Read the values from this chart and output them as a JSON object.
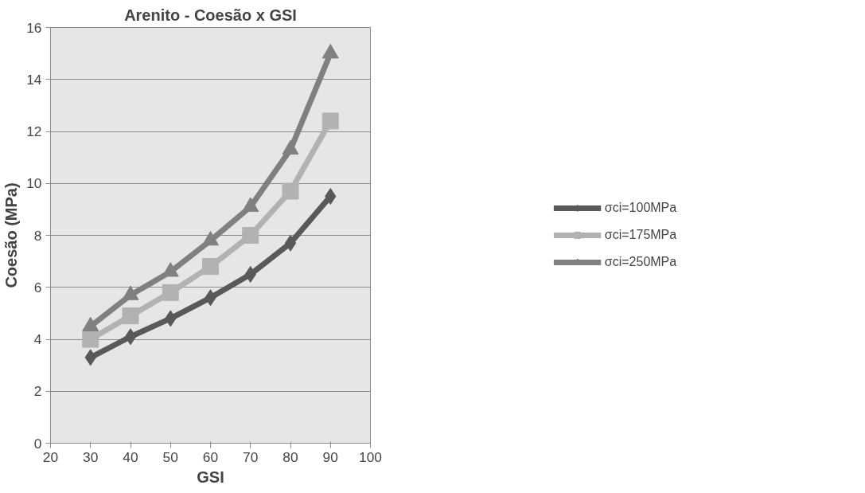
{
  "chart_data": {
    "type": "line",
    "title": "Arenito - Coesão x GSI",
    "xlabel": "GSI",
    "ylabel": "Coesão (MPa)",
    "x": [
      30,
      40,
      50,
      60,
      70,
      80,
      90
    ],
    "series": [
      {
        "name": "σci=100MPa",
        "color": "#595959",
        "marker": "diamond",
        "values": [
          3.3,
          4.1,
          4.8,
          5.6,
          6.5,
          7.7,
          9.5
        ]
      },
      {
        "name": "σci=175MPa",
        "color": "#b2b2b2",
        "marker": "square",
        "values": [
          4.0,
          4.9,
          5.8,
          6.8,
          8.0,
          9.7,
          12.4
        ]
      },
      {
        "name": "σci=250MPa",
        "color": "#808080",
        "marker": "triangle",
        "values": [
          4.5,
          5.7,
          6.6,
          7.8,
          9.1,
          11.3,
          15.0
        ]
      }
    ],
    "xlim": [
      20,
      100
    ],
    "xticks": [
      20,
      30,
      40,
      50,
      60,
      70,
      80,
      90,
      100
    ],
    "ylim": [
      0,
      16
    ],
    "yticks": [
      0,
      2,
      4,
      6,
      8,
      10,
      12,
      14,
      16
    ],
    "grid": "y",
    "legend": "right",
    "line_style": "solid"
  }
}
